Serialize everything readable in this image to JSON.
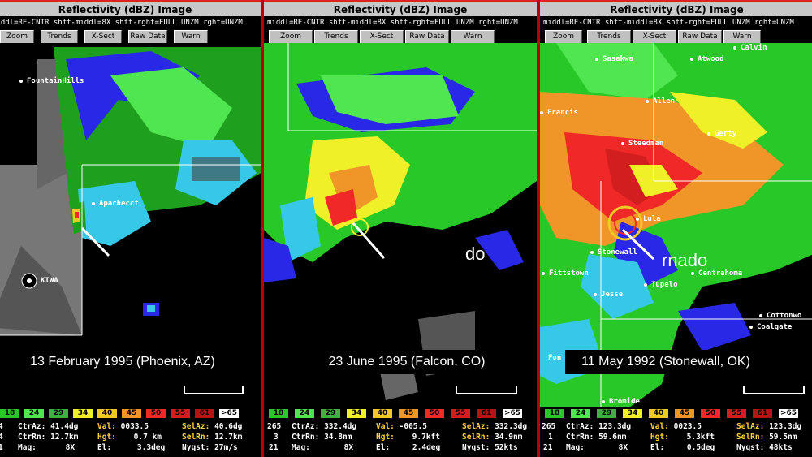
{
  "panels": [
    {
      "title": "Reflectivity (dBZ) Image",
      "info": "middl=RE-CNTR   shft-middl=8X   shft-rght=FULL UNZM   rght=UNZM",
      "buttons": [
        "Zoom",
        "Trends",
        "X-Sect",
        "Raw Data",
        "Warn"
      ],
      "caption": "13 February 1995 (Phoenix, AZ)",
      "cities": [
        "FountainHills",
        "Apachecct"
      ],
      "radar_site": "KIWA",
      "stats": {
        "r1c0": "4",
        "r2c0": "4",
        "r3c0": "1",
        "ctraz_label": "CtrAz:",
        "ctraz": "41.4dg",
        "ctrrn_label": "CtrRn:",
        "ctrrn": "12.7km",
        "mag_label": "Mag:",
        "mag": "8X",
        "val_label": "Val:",
        "val": "0033.5",
        "hgt_label": "Hgt:",
        "hgt": "0.7 km",
        "el_label": "El:",
        "el": "3.3deg",
        "selaz_label": "SelAz:",
        "selaz": "40.6dg",
        "selrn_label": "SelRn:",
        "selrn": "12.7km",
        "nyq_label": "Nyqst:",
        "nyq": "27m/s"
      }
    },
    {
      "title": "Reflectivity (dBZ) Image",
      "info": "middl=RE-CNTR   shft-middl=8X   shft-rght=FULL UNZM   rght=UNZM",
      "buttons": [
        "Zoom",
        "Trends",
        "X-Sect",
        "Raw Data",
        "Warn"
      ],
      "caption": "23 June 1995 (Falcon, CO)",
      "overlay_text": "do",
      "stats": {
        "r1c0": "265",
        "r2c0": "3",
        "r3c0": "21",
        "ctraz_label": "CtrAz:",
        "ctraz": "332.4dg",
        "ctrrn_label": "CtrRn:",
        "ctrrn": "34.8nm",
        "mag_label": "Mag:",
        "mag": "8X",
        "val_label": "Val:",
        "val": "-005.5",
        "hgt_label": "Hgt:",
        "hgt": "9.7kft",
        "el_label": "El:",
        "el": "2.4deg",
        "selaz_label": "SelAz:",
        "selaz": "332.3dg",
        "selrn_label": "SelRn:",
        "selrn": "34.9nm",
        "nyq_label": "Nyqst:",
        "nyq": "52kts"
      }
    },
    {
      "title": "Reflectivity (dBZ) Image",
      "info": "middl=RE-CNTR   shft-middl=8X   shft-rght=FULL UNZM   rght=UNZM",
      "buttons": [
        "Zoom",
        "Trends",
        "X-Sect",
        "Raw Data",
        "Warn"
      ],
      "caption": "11 May 1992 (Stonewall, OK)",
      "overlay_text": "rnado",
      "cities": [
        "Sasakwa",
        "Atwood",
        "Calvin",
        "Francis",
        "Allen",
        "Steedman",
        "Gerty",
        "Lula",
        "Stonewall",
        "Fittstown",
        "Centrahoma",
        "Tupelo",
        "Jesse",
        "Cottonwo",
        "Coalgate",
        "Bromide",
        "Fon"
      ],
      "stats": {
        "r1c0": "265",
        "r2c0": "1",
        "r3c0": "21",
        "ctraz_label": "CtrAz:",
        "ctraz": "123.3dg",
        "ctrrn_label": "CtrRn:",
        "ctrrn": "59.6nm",
        "mag_label": "Mag:",
        "mag": "8X",
        "val_label": "Val:",
        "val": "0023.5",
        "hgt_label": "Hgt:",
        "hgt": "5.3kft",
        "el_label": "El:",
        "el": "0.5deg",
        "selaz_label": "SelAz:",
        "selaz": "123.3dg",
        "selrn_label": "SelRn:",
        "selrn": "59.5nm",
        "nyq_label": "Nyqst:",
        "nyq": "48kts"
      }
    }
  ],
  "colorbar": [
    {
      "label": "18",
      "color": "#28c828"
    },
    {
      "label": "24",
      "color": "#50e650"
    },
    {
      "label": "29",
      "color": "#40b040"
    },
    {
      "label": "34",
      "color": "#f0f028"
    },
    {
      "label": "40",
      "color": "#f0c828"
    },
    {
      "label": "45",
      "color": "#f09628"
    },
    {
      "label": "50",
      "color": "#f02828"
    },
    {
      "label": "55",
      "color": "#d21e1e"
    },
    {
      "label": "61",
      "color": "#b41414"
    },
    {
      "label": ">65",
      "color": "#ffffff"
    }
  ]
}
